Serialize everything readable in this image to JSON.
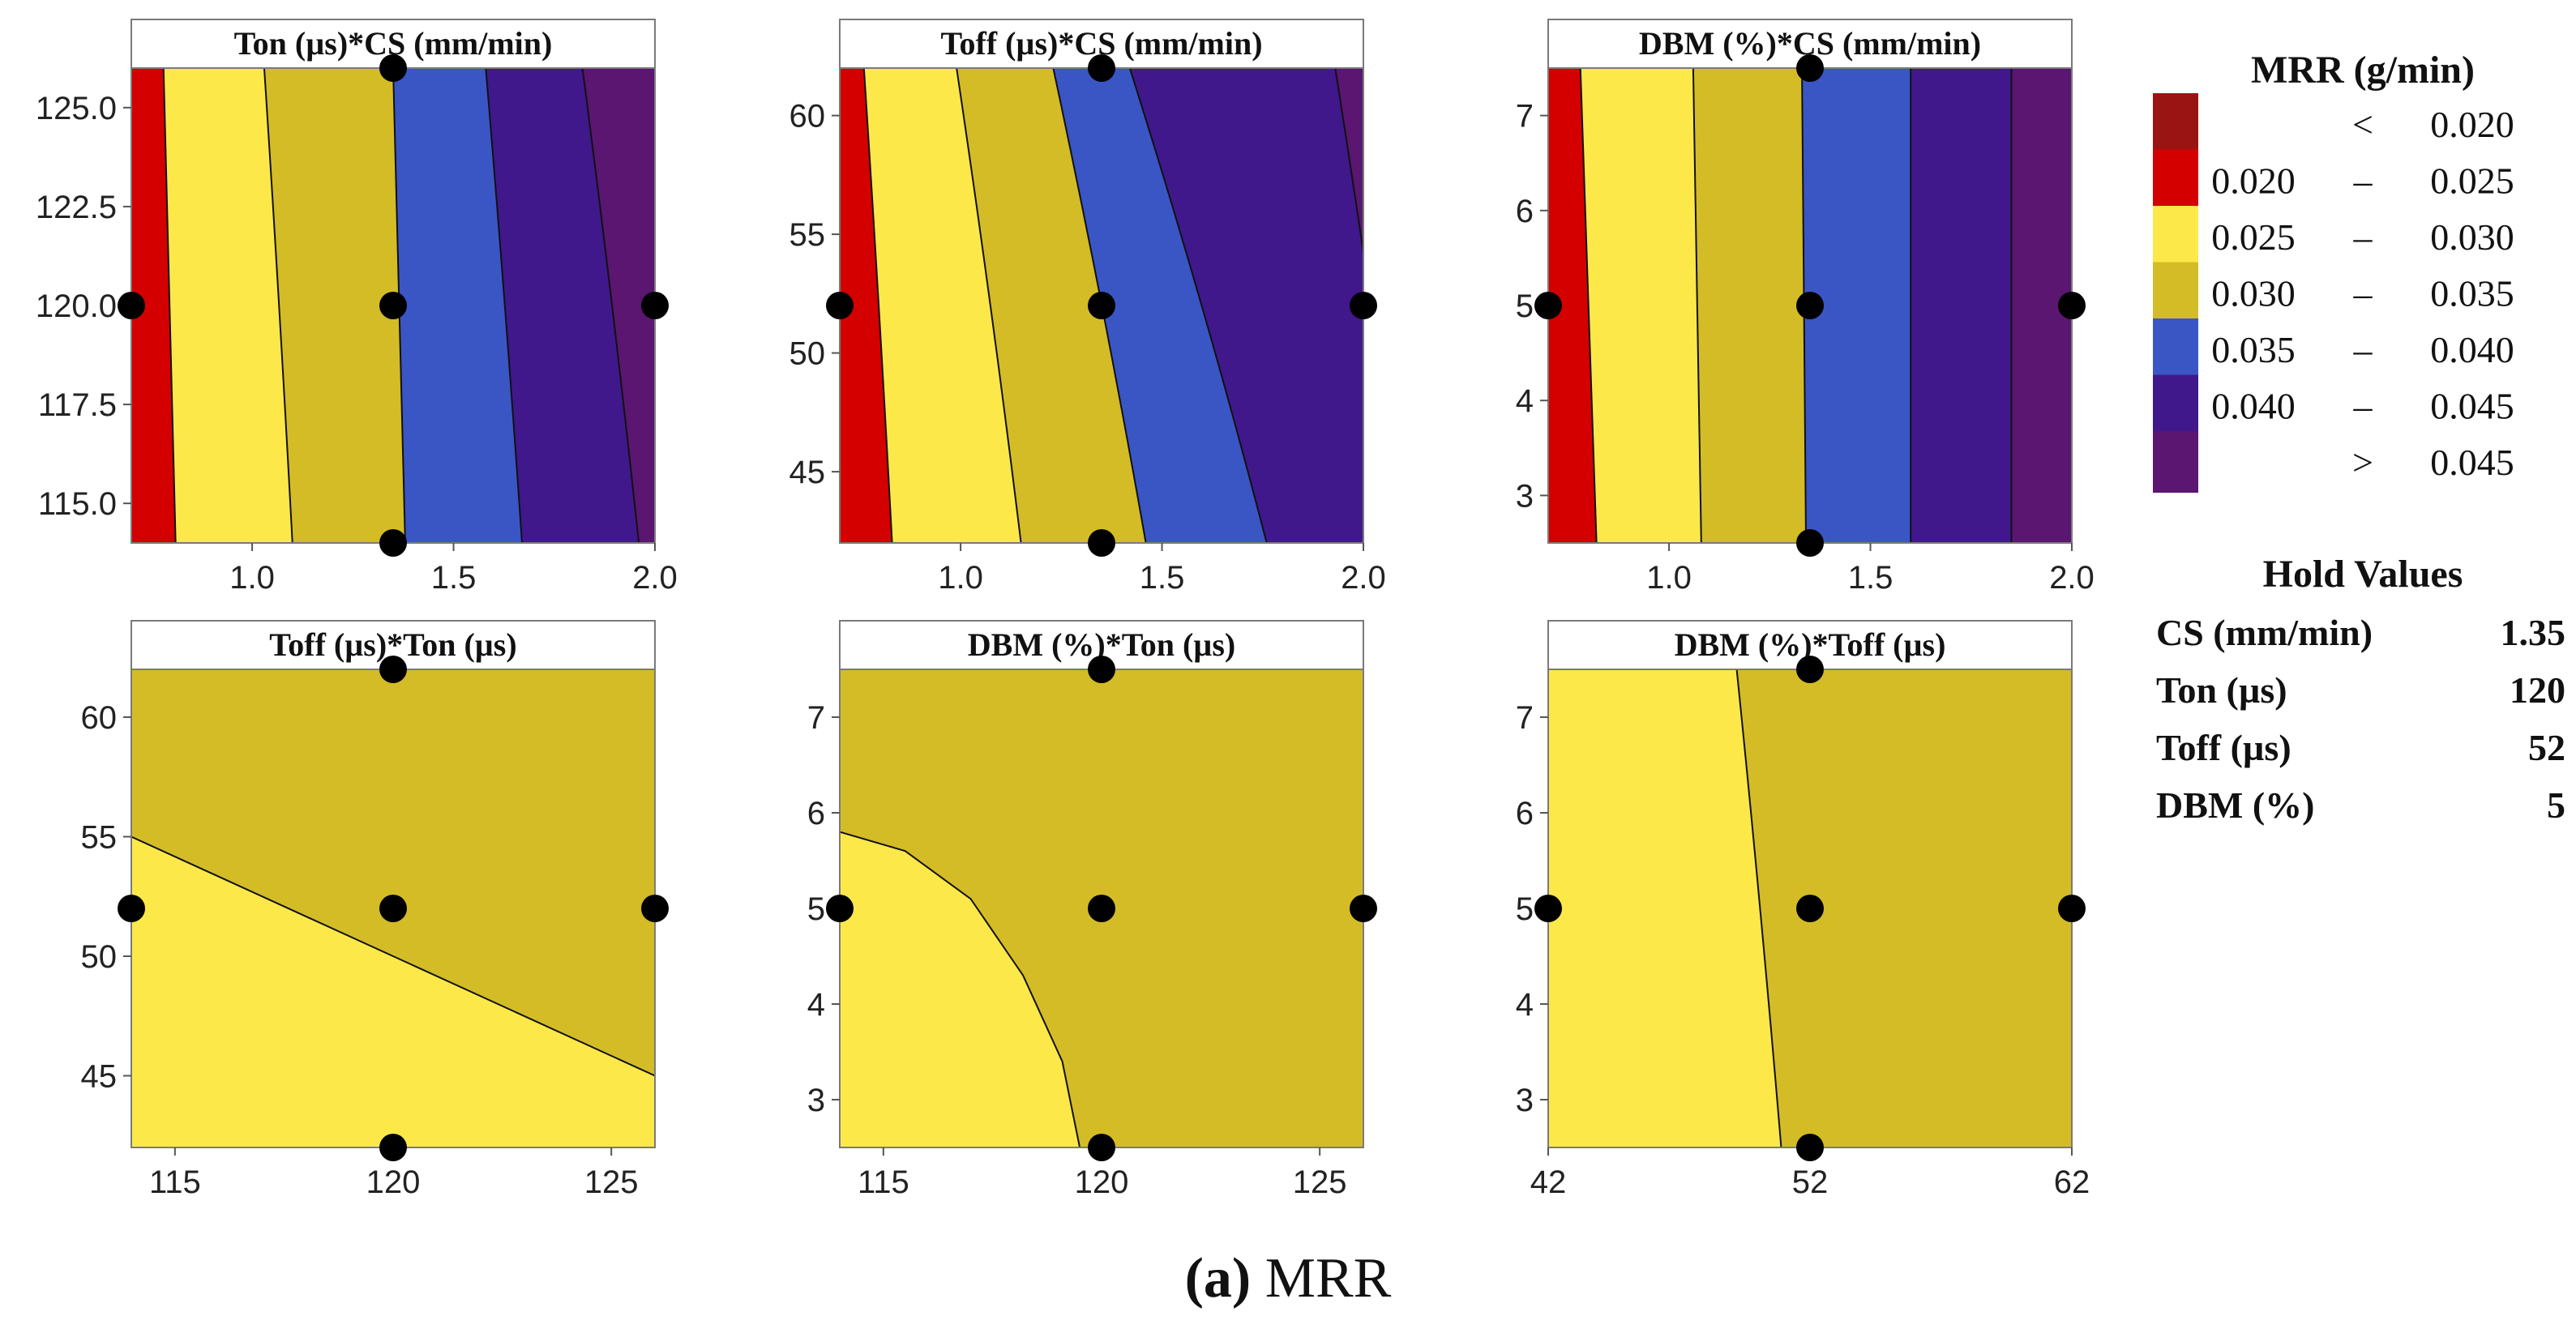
{
  "caption": {
    "letter": "(a)",
    "text": " MRR"
  },
  "legend": {
    "title": "MRR (g/min)",
    "bins": [
      {
        "min": "",
        "sep": "<",
        "max": "0.020",
        "color": "#9b1414"
      },
      {
        "min": "0.020",
        "sep": "–",
        "max": "0.025",
        "color": "#d40000"
      },
      {
        "min": "0.025",
        "sep": "–",
        "max": "0.030",
        "color": "#fde84a"
      },
      {
        "min": "0.030",
        "sep": "–",
        "max": "0.035",
        "color": "#d4bc27"
      },
      {
        "min": "0.035",
        "sep": "–",
        "max": "0.040",
        "color": "#3a56c4"
      },
      {
        "min": "0.040",
        "sep": "–",
        "max": "0.045",
        "color": "#40188c"
      },
      {
        "min": "",
        "sep": ">",
        "max": "0.045",
        "color": "#5a1670"
      }
    ]
  },
  "hold_values": {
    "title": "Hold Values",
    "rows": [
      {
        "name": "CS (mm/min)",
        "value": "1.35"
      },
      {
        "name": "Ton (µs)",
        "value": "120"
      },
      {
        "name": "Toff (µs)",
        "value": "52"
      },
      {
        "name": "DBM (%)",
        "value": "5"
      }
    ]
  },
  "chart_data": [
    {
      "type": "contour",
      "title": "Ton (µs)*CS (mm/min)",
      "x_range": [
        0.7,
        2.0
      ],
      "y_range": [
        114,
        126
      ],
      "x_ticks": [
        1.0,
        1.5,
        2.0
      ],
      "x_tick_labels": [
        "1.0",
        "1.5",
        "2.0"
      ],
      "y_ticks": [
        115.0,
        117.5,
        120.0,
        122.5,
        125.0
      ],
      "y_tick_labels": [
        "115.0",
        "117.5",
        "120.0",
        "122.5",
        "125.0"
      ],
      "base_color": "#5a1670",
      "regions": [
        {
          "color": "#40188c",
          "bottom_x": 1.96,
          "top_x": 1.82
        },
        {
          "color": "#3a56c4",
          "bottom_x": 1.67,
          "top_x": 1.58
        },
        {
          "color": "#d4bc27",
          "bottom_x": 1.38,
          "top_x": 1.35
        },
        {
          "color": "#fde84a",
          "bottom_x": 1.1,
          "top_x": 1.03
        },
        {
          "color": "#d40000",
          "bottom_x": 0.81,
          "top_x": 0.78
        },
        {
          "color": "#9b1414",
          "bottom_x": 0.7,
          "top_x": 0.7
        }
      ],
      "points": [
        [
          0.7,
          120
        ],
        [
          1.35,
          114
        ],
        [
          1.35,
          120
        ],
        [
          1.35,
          126
        ],
        [
          2.0,
          120
        ]
      ]
    },
    {
      "type": "contour",
      "title": "Toff (µs)*CS (mm/min)",
      "x_range": [
        0.7,
        2.0
      ],
      "y_range": [
        42,
        62
      ],
      "x_ticks": [
        1.0,
        1.5,
        2.0
      ],
      "x_tick_labels": [
        "1.0",
        "1.5",
        "2.0"
      ],
      "y_ticks": [
        45,
        50,
        55,
        60
      ],
      "y_tick_labels": [
        "45",
        "50",
        "55",
        "60"
      ],
      "base_color": "#5a1670",
      "regions": [
        {
          "color": "#40188c",
          "bottom_x": 2.1,
          "top_x": 1.93
        },
        {
          "color": "#3a56c4",
          "bottom_x": 1.76,
          "top_x": 1.42
        },
        {
          "color": "#d4bc27",
          "bottom_x": 1.46,
          "top_x": 1.23
        },
        {
          "color": "#fde84a",
          "bottom_x": 1.15,
          "top_x": 0.99
        },
        {
          "color": "#d40000",
          "bottom_x": 0.83,
          "top_x": 0.76
        },
        {
          "color": "#9b1414",
          "bottom_x": 0.7,
          "top_x": 0.7
        }
      ],
      "points": [
        [
          0.7,
          52
        ],
        [
          1.35,
          42
        ],
        [
          1.35,
          52
        ],
        [
          1.35,
          62
        ],
        [
          2.0,
          52
        ]
      ]
    },
    {
      "type": "contour",
      "title": "DBM (%)*CS (mm/min)",
      "x_range": [
        0.7,
        2.0
      ],
      "y_range": [
        2.5,
        7.5
      ],
      "x_ticks": [
        1.0,
        1.5,
        2.0
      ],
      "x_tick_labels": [
        "1.0",
        "1.5",
        "2.0"
      ],
      "y_ticks": [
        3,
        4,
        5,
        6,
        7
      ],
      "y_tick_labels": [
        "3",
        "4",
        "5",
        "6",
        "7"
      ],
      "base_color": "#5a1670",
      "regions": [
        {
          "color": "#40188c",
          "bottom_x": 1.85,
          "top_x": 1.85
        },
        {
          "color": "#3a56c4",
          "bottom_x": 1.6,
          "top_x": 1.6
        },
        {
          "color": "#d4bc27",
          "bottom_x": 1.34,
          "top_x": 1.33
        },
        {
          "color": "#fde84a",
          "bottom_x": 1.08,
          "top_x": 1.06
        },
        {
          "color": "#d40000",
          "bottom_x": 0.82,
          "top_x": 0.78
        },
        {
          "color": "#9b1414",
          "bottom_x": 0.7,
          "top_x": 0.7
        }
      ],
      "points": [
        [
          0.7,
          5
        ],
        [
          1.35,
          2.5
        ],
        [
          1.35,
          5
        ],
        [
          1.35,
          7.5
        ],
        [
          2.0,
          5
        ]
      ]
    },
    {
      "type": "contour",
      "title": "Toff (µs)*Ton (µs)",
      "x_range": [
        114,
        126
      ],
      "y_range": [
        42,
        62
      ],
      "x_ticks": [
        115,
        120,
        125
      ],
      "x_tick_labels": [
        "115",
        "120",
        "125"
      ],
      "y_ticks": [
        45,
        50,
        55,
        60
      ],
      "y_tick_labels": [
        "45",
        "50",
        "55",
        "60"
      ],
      "base_color": "#d4bc27",
      "regions": [],
      "boundary": [
        [
          114,
          55
        ],
        [
          126,
          45
        ]
      ],
      "boundary_fill": "#fde84a",
      "points": [
        [
          114,
          52
        ],
        [
          120,
          42
        ],
        [
          120,
          52
        ],
        [
          120,
          62
        ],
        [
          126,
          52
        ]
      ]
    },
    {
      "type": "contour",
      "title": "DBM (%)*Ton (µs)",
      "x_range": [
        114,
        126
      ],
      "y_range": [
        2.5,
        7.5
      ],
      "x_ticks": [
        115,
        120,
        125
      ],
      "x_tick_labels": [
        "115",
        "120",
        "125"
      ],
      "y_ticks": [
        3,
        4,
        5,
        6,
        7
      ],
      "y_tick_labels": [
        "3",
        "4",
        "5",
        "6",
        "7"
      ],
      "base_color": "#d4bc27",
      "regions": [],
      "boundary": [
        [
          114,
          5.8
        ],
        [
          115.5,
          5.6
        ],
        [
          117,
          5.1
        ],
        [
          118.2,
          4.3
        ],
        [
          119.1,
          3.4
        ],
        [
          119.5,
          2.5
        ]
      ],
      "boundary_fill": "#fde84a",
      "points": [
        [
          114,
          5
        ],
        [
          120,
          2.5
        ],
        [
          120,
          5
        ],
        [
          120,
          7.5
        ],
        [
          126,
          5
        ]
      ]
    },
    {
      "type": "contour",
      "title": "DBM (%)*Toff (µs)",
      "x_range": [
        42,
        62
      ],
      "y_range": [
        2.5,
        7.5
      ],
      "x_ticks": [
        42,
        52,
        62
      ],
      "x_tick_labels": [
        "42",
        "52",
        "62"
      ],
      "y_ticks": [
        3,
        4,
        5,
        6,
        7
      ],
      "y_tick_labels": [
        "3",
        "4",
        "5",
        "6",
        "7"
      ],
      "base_color": "#d4bc27",
      "regions": [
        {
          "color": "#fde84a",
          "bottom_x": 50.9,
          "top_x": 49.2
        }
      ],
      "points": [
        [
          42,
          5
        ],
        [
          52,
          2.5
        ],
        [
          52,
          5
        ],
        [
          52,
          7.5
        ],
        [
          62,
          5
        ]
      ]
    }
  ]
}
